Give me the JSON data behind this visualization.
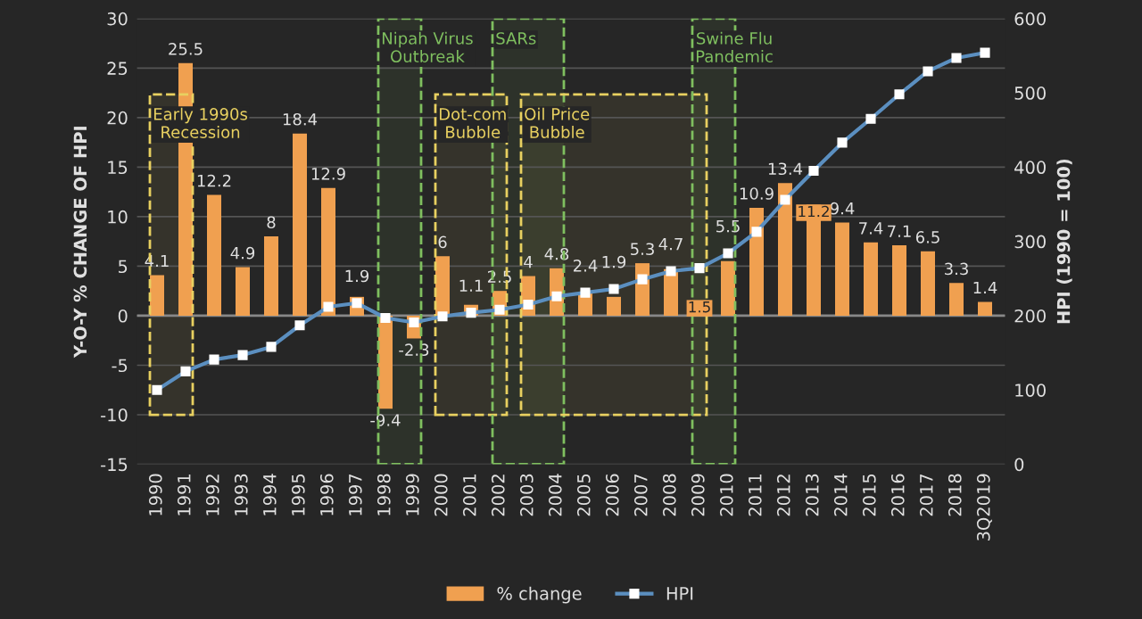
{
  "chart_data": {
    "type": "bar",
    "xlabel": null,
    "ylabel": "Y-O-Y % CHANGE OF HPI",
    "y2label": "HPI (1990 = 100)",
    "categories": [
      "1990",
      "1991",
      "1992",
      "1993",
      "1994",
      "1995",
      "1996",
      "1997",
      "1998",
      "1999",
      "2000",
      "2001",
      "2002",
      "2003",
      "2004",
      "2005",
      "2006",
      "2007",
      "2008",
      "2009",
      "2010",
      "2011",
      "2012",
      "2013",
      "2014",
      "2015",
      "2016",
      "2017",
      "2018",
      "3Q2019"
    ],
    "series": [
      {
        "name": "% change",
        "color": "#f0a050",
        "data_labels": true,
        "values": [
          4.1,
          25.5,
          12.2,
          4.9,
          8,
          18.4,
          12.9,
          1.9,
          -9.4,
          -2.3,
          6,
          1.1,
          2.5,
          4,
          4.8,
          2.4,
          1.9,
          5.3,
          4.7,
          1.5,
          5.5,
          10.9,
          13.4,
          11.2,
          9.4,
          7.4,
          7.1,
          6.5,
          3.3,
          1.4
        ]
      },
      {
        "name": "HPI",
        "type": "line",
        "axis": "y2",
        "color": "#5b8fc0",
        "marker": "square",
        "values": [
          100,
          125,
          141,
          147,
          158,
          187,
          212,
          217,
          197,
          191,
          199,
          204,
          208,
          215,
          226,
          231,
          236,
          249,
          260,
          264,
          284,
          313,
          356,
          395,
          433,
          465,
          498,
          529,
          547,
          554
        ]
      }
    ],
    "ylim": [
      -15,
      30
    ],
    "yticks": [
      -15,
      -10,
      -5,
      0,
      5,
      10,
      15,
      20,
      25,
      30
    ],
    "y2lim": [
      0,
      600
    ],
    "y2ticks": [
      0,
      100,
      200,
      300,
      400,
      500,
      600
    ],
    "grid": "y",
    "legend": "bottom",
    "bands": [
      {
        "axis": "x",
        "from": "1990",
        "to": "1991",
        "label": "Early 1990s Recession",
        "color": "#e8d060"
      },
      {
        "axis": "x",
        "from": "1998",
        "to": "1999",
        "label": "Nipah Virus Outbreak",
        "color": "#7fbf5f"
      },
      {
        "axis": "x",
        "from": "2000",
        "to": "2002",
        "label": "Dot-com Bubble",
        "color": "#e8d060"
      },
      {
        "axis": "x",
        "from": "2002",
        "to": "2004",
        "label": "SARs",
        "color": "#7fbf5f"
      },
      {
        "axis": "x",
        "from": "2003",
        "to": "2009",
        "label": "Oil Price Bubble",
        "color": "#e8d060"
      },
      {
        "axis": "x",
        "from": "2009",
        "to": "2010",
        "label": "Swine Flu Pandemic",
        "color": "#7fbf5f"
      }
    ]
  }
}
